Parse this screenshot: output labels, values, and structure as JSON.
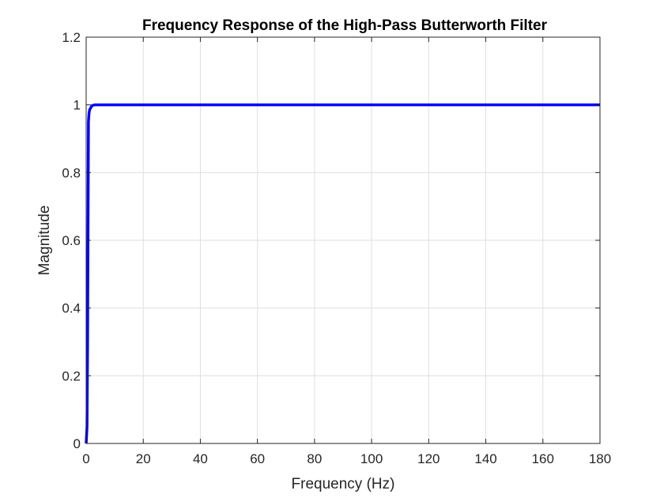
{
  "chart_data": {
    "type": "line",
    "title": "Frequency Response of the High-Pass Butterworth Filter",
    "xlabel": "Frequency (Hz)",
    "ylabel": "Magnitude",
    "xlim": [
      0,
      180
    ],
    "ylim": [
      0,
      1.2
    ],
    "xticks": [
      "0",
      "20",
      "40",
      "60",
      "80",
      "100",
      "120",
      "140",
      "160",
      "180"
    ],
    "yticks": [
      "0",
      "0.2",
      "0.4",
      "0.6",
      "0.8",
      "1",
      "1.2"
    ],
    "grid": true,
    "line_color": "#0000ff",
    "series": [
      {
        "x": [
          0,
          0.3,
          0.5,
          0.8,
          1.0,
          1.2,
          1.5,
          2.0,
          2.5,
          3.0,
          5.0,
          10,
          20,
          40,
          60,
          80,
          100,
          120,
          140,
          160,
          180
        ],
        "values": [
          0,
          0.05,
          0.3,
          0.95,
          0.975,
          0.985,
          0.99,
          0.997,
          0.999,
          1.0,
          1.0,
          1.0,
          1.0,
          1.0,
          1.0,
          1.0,
          1.0,
          1.0,
          1.0,
          1.0,
          1.0
        ]
      }
    ]
  }
}
